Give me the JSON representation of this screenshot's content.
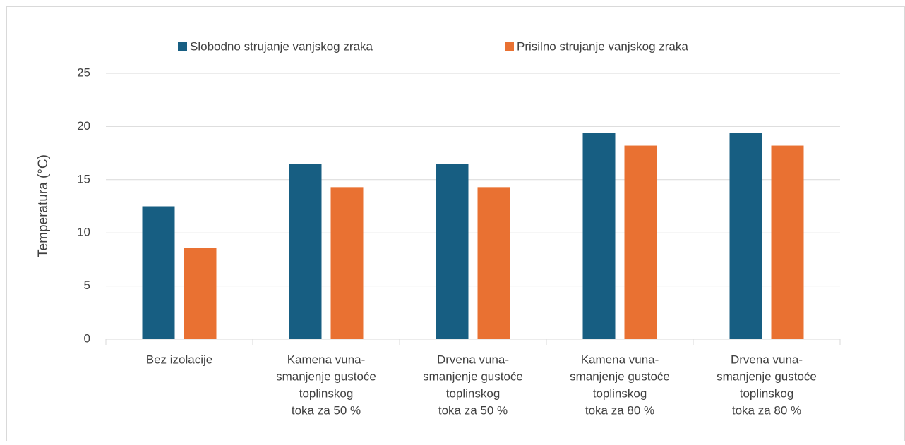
{
  "chart_data": {
    "type": "bar",
    "y_label": "Temperatura (°C)",
    "categories": [
      [
        "Bez izolacije"
      ],
      [
        "Kamena vuna-",
        "smanjenje gustoće",
        "toplinskog",
        "toka za 50 %"
      ],
      [
        "Drvena vuna-",
        "smanjenje gustoće",
        "toplinskog",
        "toka za 50 %"
      ],
      [
        "Kamena vuna-",
        "smanjenje gustoće",
        "toplinskog",
        "toka za 80 %"
      ],
      [
        "Drvena vuna-",
        "smanjenje gustoće",
        "toplinskog",
        "toka za 80 %"
      ]
    ],
    "series": [
      {
        "name": "Slobodno strujanje vanjskog zraka",
        "color": "#175e82",
        "values": [
          12.5,
          16.5,
          16.5,
          19.4,
          19.4
        ]
      },
      {
        "name": "Prisilno strujanje vanjskog zraka",
        "color": "#e97132",
        "values": [
          8.6,
          14.3,
          14.3,
          18.2,
          18.2
        ]
      }
    ],
    "ylim": [
      0,
      25
    ],
    "yticks": [
      0,
      5,
      10,
      15,
      20,
      25
    ],
    "grid": true,
    "legend": "top"
  }
}
